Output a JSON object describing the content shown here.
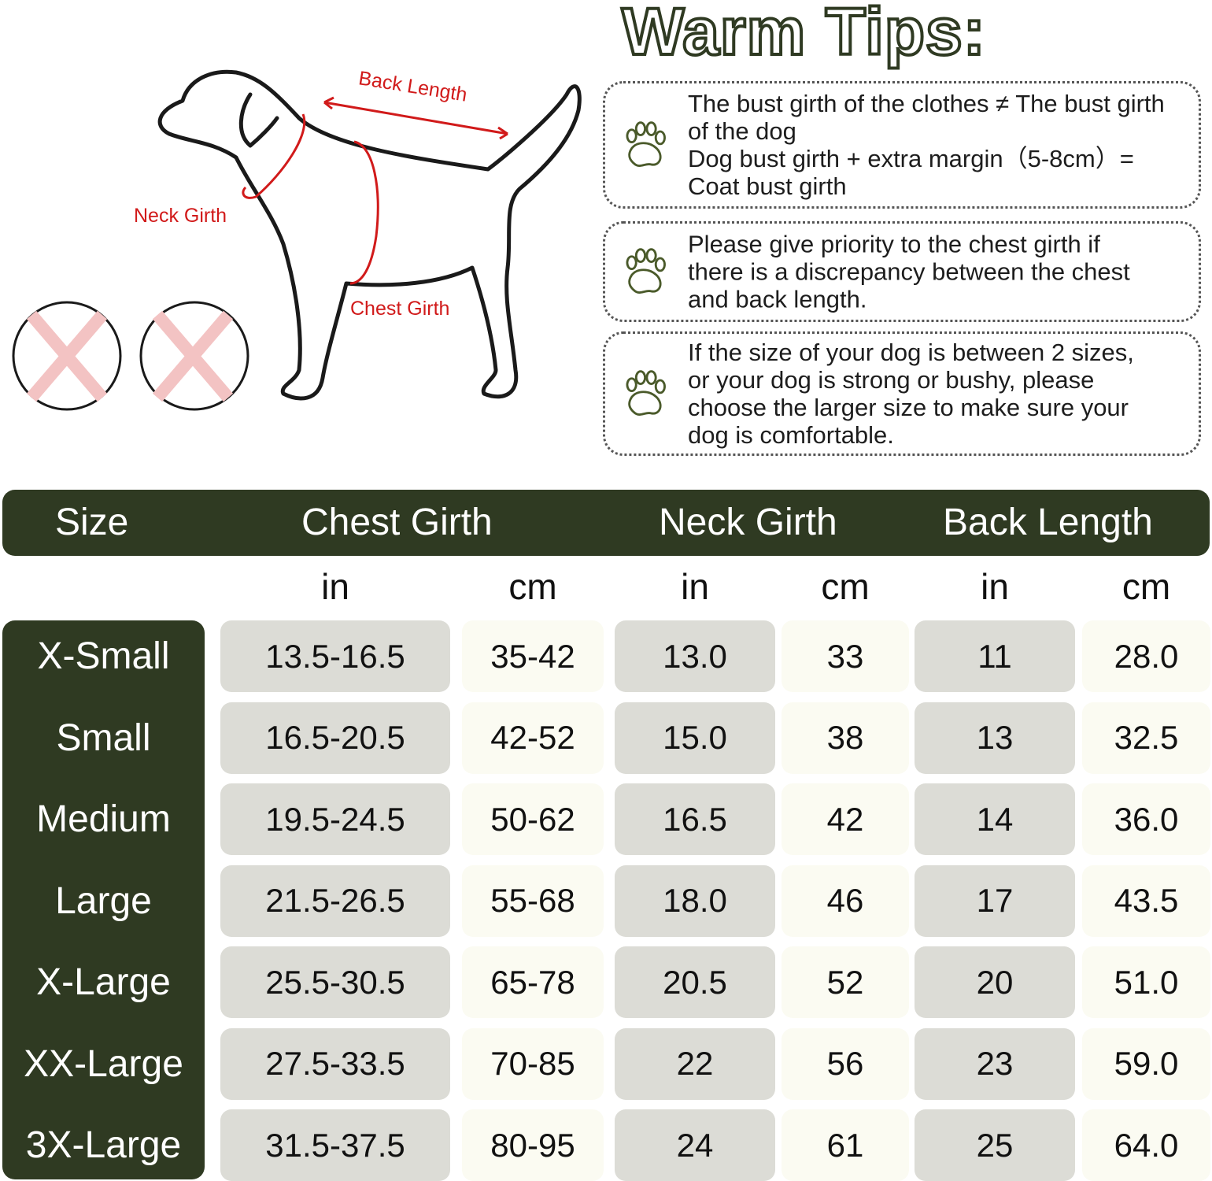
{
  "tips_title": "Warm Tips:",
  "tips": [
    {
      "icon": "paw-icon",
      "lines": [
        "The bust girth of the clothes ≠ The bust girth",
        "of the dog",
        "Dog bust girth + extra margin（5-8cm）=",
        "Coat bust girth"
      ]
    },
    {
      "icon": "paw-icon",
      "lines": [
        "Please give priority to the chest girth if",
        "there is a discrepancy between the chest",
        "and back length."
      ]
    },
    {
      "icon": "paw-icon",
      "lines": [
        "If the size of your dog is between 2 sizes,",
        "or your dog is strong or bushy, please",
        "choose the larger size to make sure your",
        "dog is comfortable."
      ]
    }
  ],
  "diagram": {
    "back_length": "Back Length",
    "neck_girth": "Neck Girth",
    "chest_girth": "Chest Girth"
  },
  "colors": {
    "header": "#2f3a22",
    "measure": "#d11a1a",
    "cell_gray": "#dcdcd6",
    "cell_cream": "#fbfbf2"
  },
  "table": {
    "headers": [
      "Size",
      "Chest Girth",
      "Neck Girth",
      "Back Length"
    ],
    "units": [
      "in",
      "cm",
      "in",
      "cm",
      "in",
      "cm"
    ],
    "rows": [
      [
        "X-Small",
        "13.5-16.5",
        "35-42",
        "13.0",
        "33",
        "11",
        "28.0"
      ],
      [
        "Small",
        "16.5-20.5",
        "42-52",
        "15.0",
        "38",
        "13",
        "32.5"
      ],
      [
        "Medium",
        "19.5-24.5",
        "50-62",
        "16.5",
        "42",
        "14",
        "36.0"
      ],
      [
        "Large",
        "21.5-26.5",
        "55-68",
        "18.0",
        "46",
        "17",
        "43.5"
      ],
      [
        "X-Large",
        "25.5-30.5",
        "65-78",
        "20.5",
        "52",
        "20",
        "51.0"
      ],
      [
        "XX-Large",
        "27.5-33.5",
        "70-85",
        "22",
        "56",
        "23",
        "59.0"
      ],
      [
        "3X-Large",
        "31.5-37.5",
        "80-95",
        "24",
        "61",
        "25",
        "64.0"
      ]
    ]
  }
}
